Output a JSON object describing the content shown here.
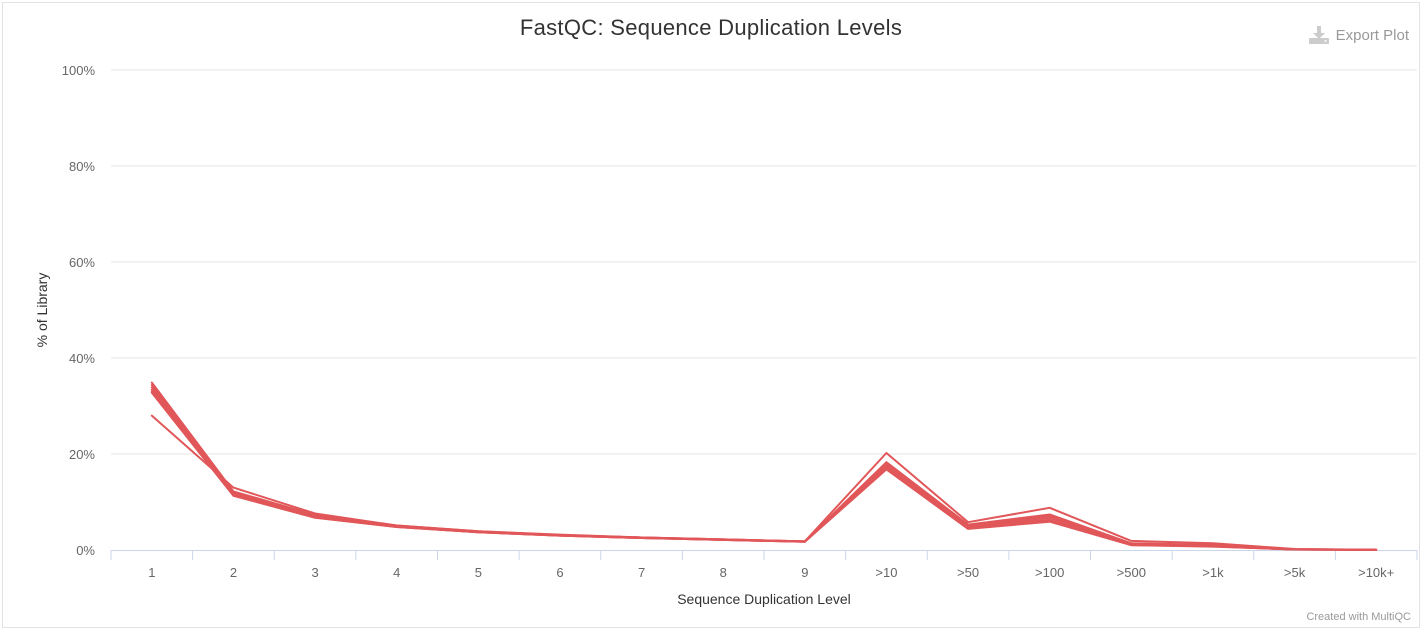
{
  "toolbar": {
    "export_label": "Export Plot",
    "export_icon": "download-icon"
  },
  "footer": {
    "credit": "Created with MultiQC"
  },
  "chart_data": {
    "type": "line",
    "title": "FastQC: Sequence Duplication Levels",
    "xlabel": "Sequence Duplication Level",
    "ylabel": "% of Library",
    "categories": [
      "1",
      "2",
      "3",
      "4",
      "5",
      "6",
      "7",
      "8",
      "9",
      ">10",
      ">50",
      ">100",
      ">500",
      ">1k",
      ">5k",
      ">10k+"
    ],
    "ylim": [
      0,
      100
    ],
    "yticks": [
      0,
      20,
      40,
      60,
      80,
      100
    ],
    "ytick_suffix": "%",
    "grid": true,
    "legend": "none",
    "line_color": "#e15759",
    "series": [
      {
        "values": [
          28.0,
          13.0,
          7.6,
          5.1,
          3.9,
          3.1,
          2.6,
          2.2,
          1.8,
          20.2,
          5.8,
          8.8,
          1.9,
          1.4,
          0.2,
          0.05
        ]
      },
      {
        "values": [
          32.8,
          11.3,
          6.7,
          4.8,
          3.7,
          3.0,
          2.5,
          2.1,
          1.7,
          16.8,
          4.4,
          5.9,
          1.0,
          0.7,
          0.1,
          0.03
        ]
      },
      {
        "values": [
          33.4,
          11.6,
          6.9,
          4.9,
          3.7,
          3.0,
          2.5,
          2.1,
          1.7,
          17.2,
          4.7,
          6.3,
          1.1,
          0.8,
          0.1,
          0.03
        ]
      },
      {
        "values": [
          33.9,
          11.8,
          7.0,
          5.0,
          3.8,
          3.1,
          2.6,
          2.1,
          1.8,
          17.6,
          4.9,
          6.7,
          1.2,
          0.9,
          0.1,
          0.03
        ]
      },
      {
        "values": [
          34.4,
          12.0,
          7.2,
          5.0,
          3.8,
          3.1,
          2.6,
          2.2,
          1.8,
          18.0,
          5.1,
          7.1,
          1.3,
          1.0,
          0.15,
          0.04
        ]
      },
      {
        "values": [
          34.9,
          12.2,
          7.3,
          5.1,
          3.9,
          3.2,
          2.6,
          2.2,
          1.8,
          18.3,
          5.3,
          7.4,
          1.4,
          1.1,
          0.15,
          0.04
        ]
      },
      {
        "values": [
          33.0,
          11.5,
          6.8,
          4.8,
          3.7,
          3.0,
          2.5,
          2.1,
          1.7,
          17.0,
          4.6,
          6.1,
          1.05,
          0.75,
          0.1,
          0.03
        ]
      }
    ]
  }
}
